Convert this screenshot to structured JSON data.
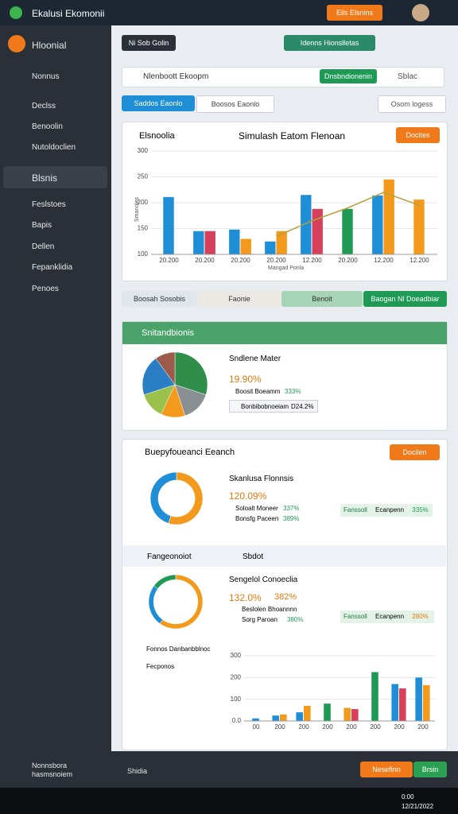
{
  "titlebar": {
    "app_name": "Ekalusi Ekomonii",
    "button": "Eils Elsnins"
  },
  "sidebar": {
    "header": "Hloonial",
    "items": [
      "Nonnus",
      "Declss",
      "Benoolin",
      "Nutoldoclien"
    ],
    "section": "Blsnis",
    "sub_items": [
      "Feslstoes",
      "Bapis",
      "Dellen",
      "Fepanklidia",
      "Penoes"
    ],
    "footer": {
      "title": "Nonnsbora",
      "subtitle": "hasmsnoiem",
      "action": "Shidia"
    }
  },
  "toolbar": {
    "tab": "Ni Sob Golin",
    "primary": "Idenns Hionslletas",
    "search": "Nlenboott Ekoopm",
    "search_button": "Dnsbndionenin",
    "toggle": "Sblac"
  },
  "filters": {
    "tabs": [
      "Saddos Eaonlo",
      "Boosos Eaonlo"
    ],
    "select": "Osom logess"
  },
  "main_chart": {
    "type": "bar",
    "label": "Elsnoolia",
    "title": "Simulash Eatom Flenoan",
    "button": "Docites",
    "axis_label": "Smanoles",
    "x_axis_label": "Mangad Ponla",
    "categories": [
      "20.200",
      "20.200",
      "20.200",
      "20.200",
      "12.200",
      "20.200",
      "12.200",
      "12.200"
    ],
    "series": [
      {
        "color": "#1e8fd6",
        "values": [
          211,
          145,
          148,
          125,
          215,
          null,
          214,
          null
        ]
      },
      {
        "color": "#d6405a",
        "values": [
          null,
          145,
          null,
          null,
          188,
          null,
          null,
          null
        ]
      },
      {
        "color": "#f39a1c",
        "values": [
          null,
          null,
          130,
          145,
          null,
          null,
          245,
          206
        ]
      },
      {
        "color": "#1e9a55",
        "values": [
          null,
          null,
          null,
          null,
          null,
          188,
          null,
          null
        ]
      }
    ],
    "line": {
      "color": "#b5a03a",
      "values": [
        null,
        null,
        null,
        135,
        165,
        190,
        220,
        195
      ]
    },
    "ylim": [
      100,
      300
    ],
    "yticks": [
      100,
      150,
      200,
      250,
      300
    ]
  },
  "actions": [
    "Boosah Sosobis",
    "Faonie",
    "Benoit",
    "Baogan Nl Doeadbiar"
  ],
  "pie_panel": {
    "title": "Snitandbionis",
    "subtitle": "Sndlene Mater",
    "big": "19.90%",
    "rows": [
      {
        "label": "Boosit Boeamm",
        "value": "333%"
      },
      {
        "label": "Bonbibobnoeiam",
        "value": "D24.2%"
      }
    ],
    "chart": {
      "type": "pie",
      "values": [
        30,
        15,
        12,
        13,
        20,
        10
      ],
      "colors": [
        "#2f8f4a",
        "#8a8f94",
        "#f39a1c",
        "#9ac24a",
        "#2a7fc4",
        "#9b5a4a"
      ]
    }
  },
  "donut_panel": {
    "title": "Buepyfoueanci Eeanch",
    "button": "Docilen",
    "subtitle": "Skanlusa Flonnsis",
    "big": "120.09%",
    "rows": [
      {
        "label": "Soloalt Moneer",
        "value": "337%"
      },
      {
        "label": "Bonsfg Paceen",
        "value": "389%"
      }
    ],
    "badge": {
      "label": "Fanssoll",
      "text": "Ecanpenn",
      "value": "335%"
    },
    "chart": {
      "type": "pie",
      "values": [
        55,
        45
      ],
      "colors": [
        "#f39a1c",
        "#1e8fd6"
      ]
    },
    "tabs": [
      "Fangeonoiot",
      "Sbdot"
    ],
    "subtitle2": "Sengelol Conoeclia",
    "big2": "132.0%",
    "big2b": "382%",
    "rows2": [
      {
        "label": "Beslolen Bhoannnn",
        "value": ""
      },
      {
        "label": "Sorg Paroan",
        "value": "380%"
      }
    ],
    "badge2": {
      "label": "Fanssoll",
      "text": "Ecanpenn",
      "value": "280%"
    },
    "chart2": {
      "type": "pie",
      "values": [
        60,
        25,
        15
      ],
      "colors": [
        "#f39a1c",
        "#1e8fd6",
        "#1e9a55"
      ]
    },
    "legend": [
      "Fonnos Danbanbblnoc",
      "Fecponos"
    ]
  },
  "bottom_chart": {
    "type": "bar",
    "categories": [
      "00",
      "200",
      "200",
      "200",
      "200",
      "200",
      "200",
      "200"
    ],
    "series": [
      {
        "color": "#1e8fd6",
        "values": [
          12,
          25,
          40,
          null,
          null,
          null,
          170,
          200
        ]
      },
      {
        "color": "#f39a1c",
        "values": [
          null,
          30,
          70,
          null,
          60,
          null,
          null,
          165
        ]
      },
      {
        "color": "#d6405a",
        "values": [
          null,
          null,
          null,
          null,
          55,
          null,
          150,
          null
        ]
      },
      {
        "color": "#1e9a55",
        "values": [
          null,
          null,
          null,
          80,
          null,
          225,
          null,
          null
        ]
      }
    ],
    "ylim": [
      0,
      300
    ],
    "yticks": [
      {
        "value": 0,
        "label": "0.0"
      },
      100,
      200,
      300
    ]
  },
  "footer": {
    "primary": "Nesefinn",
    "secondary": "Brsin"
  },
  "taskbar": {
    "time": "0:00",
    "date": "12/21/2022"
  }
}
